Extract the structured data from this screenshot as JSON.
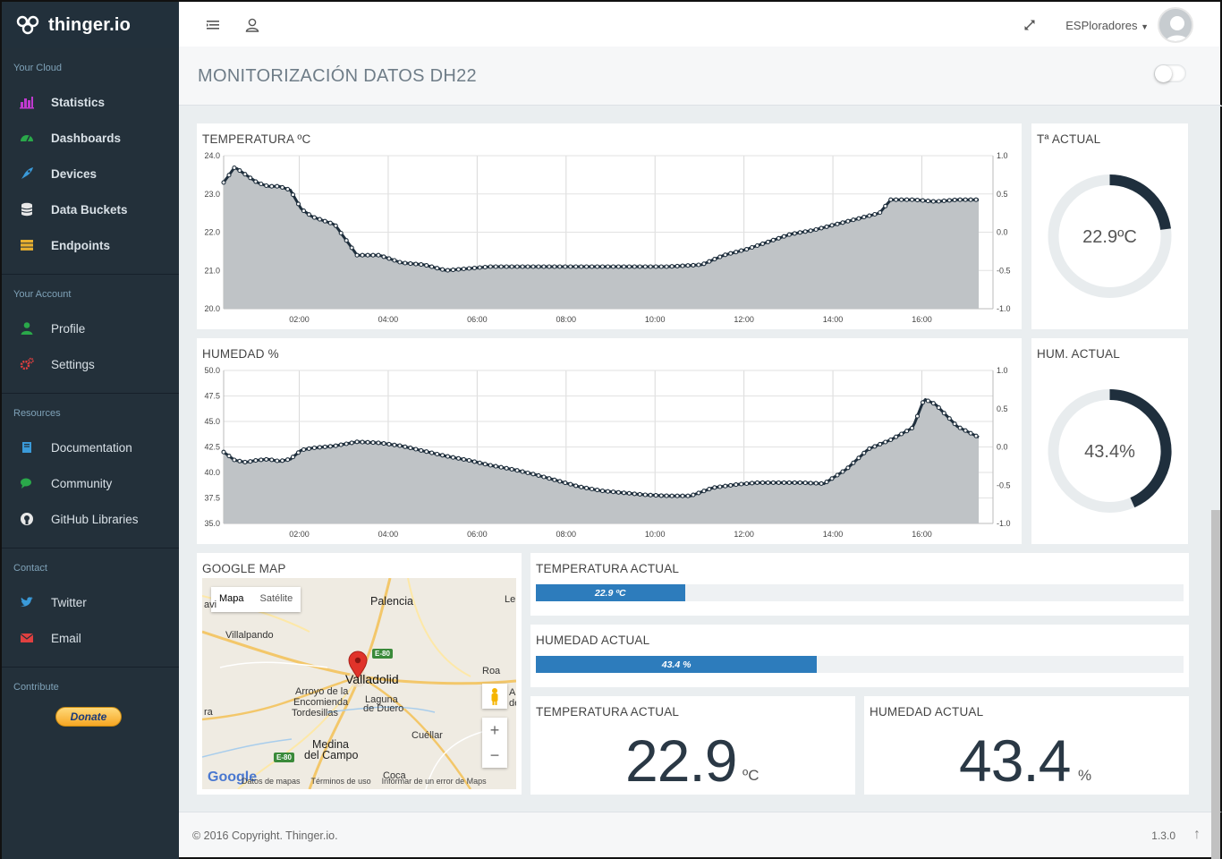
{
  "brand": {
    "name": "thinger.io"
  },
  "sidebar": {
    "sections": [
      {
        "title": "Your Cloud",
        "items": [
          {
            "label": "Statistics",
            "icon": "bar-chart-icon",
            "color": "#c03ad0",
            "bold": true
          },
          {
            "label": "Dashboards",
            "icon": "dashboard-icon",
            "color": "#2aa84a",
            "bold": true
          },
          {
            "label": "Devices",
            "icon": "rocket-icon",
            "color": "#3a9ad9",
            "bold": true
          },
          {
            "label": "Data Buckets",
            "icon": "database-icon",
            "color": "#e8e8e8",
            "bold": true
          },
          {
            "label": "Endpoints",
            "icon": "server-icon",
            "color": "#e8b030",
            "bold": true
          }
        ]
      },
      {
        "title": "Your Account",
        "items": [
          {
            "label": "Profile",
            "icon": "user-icon",
            "color": "#2aa84a",
            "bold": false
          },
          {
            "label": "Settings",
            "icon": "gears-icon",
            "color": "#e04040",
            "bold": false
          }
        ]
      },
      {
        "title": "Resources",
        "items": [
          {
            "label": "Documentation",
            "icon": "book-icon",
            "color": "#3a9ad9",
            "bold": false
          },
          {
            "label": "Community",
            "icon": "comments-icon",
            "color": "#2aa84a",
            "bold": false
          },
          {
            "label": "GitHub Libraries",
            "icon": "github-icon",
            "color": "#e8e8e8",
            "bold": false
          }
        ]
      },
      {
        "title": "Contact",
        "items": [
          {
            "label": "Twitter",
            "icon": "twitter-icon",
            "color": "#3a9ad9",
            "bold": false
          },
          {
            "label": "Email",
            "icon": "envelope-icon",
            "color": "#e04040",
            "bold": false
          }
        ]
      }
    ],
    "contribute_title": "Contribute",
    "donate_label": "Donate"
  },
  "topbar": {
    "user_name": "ESPloradores"
  },
  "dashboard": {
    "title": "MONITORIZACIÓN DATOS DH22"
  },
  "temp_chart": {
    "title": "TEMPERATURA ºC",
    "left_ticks": [
      "24.0",
      "23.0",
      "22.0",
      "21.0",
      "20.0"
    ],
    "right_ticks": [
      "1.0",
      "0.5",
      "0.0",
      "-0.5",
      "-1.0"
    ],
    "x_ticks": [
      "02:00",
      "04:00",
      "06:00",
      "08:00",
      "10:00",
      "12:00",
      "14:00",
      "16:00"
    ]
  },
  "hum_chart": {
    "title": "HUMEDAD %",
    "left_ticks": [
      "50.0",
      "47.5",
      "45.0",
      "42.5",
      "40.0",
      "37.5",
      "35.0"
    ],
    "right_ticks": [
      "1.0",
      "0.5",
      "0.0",
      "-0.5",
      "-1.0"
    ],
    "x_ticks": [
      "02:00",
      "04:00",
      "06:00",
      "08:00",
      "10:00",
      "12:00",
      "14:00",
      "16:00"
    ]
  },
  "chart_data": [
    {
      "type": "area",
      "title": "TEMPERATURA ºC",
      "x_unit": "hours",
      "x": [
        0.0,
        0.25,
        0.5,
        0.75,
        1.0,
        1.25,
        1.5,
        1.75,
        2.0,
        2.25,
        2.5,
        2.75,
        3.0,
        3.5,
        4.0,
        4.5,
        5.0,
        5.5,
        6.0,
        7.0,
        8.0,
        9.0,
        10.0,
        10.75,
        11.25,
        11.75,
        12.25,
        12.75,
        13.25,
        13.75,
        14.25,
        14.75,
        15.0,
        15.5,
        16.0,
        16.5,
        17.0
      ],
      "series": [
        {
          "values": [
            23.3,
            23.7,
            23.5,
            23.3,
            23.2,
            23.2,
            23.1,
            22.6,
            22.4,
            22.3,
            22.2,
            21.8,
            21.4,
            21.4,
            21.2,
            21.15,
            21.0,
            21.05,
            21.1,
            21.1,
            21.1,
            21.1,
            21.1,
            21.15,
            21.4,
            21.55,
            21.75,
            21.95,
            22.05,
            22.2,
            22.35,
            22.5,
            22.85,
            22.85,
            22.8,
            22.85,
            22.85
          ]
        }
      ],
      "ylim": [
        20.0,
        24.0
      ],
      "y2lim": [
        -1.0,
        1.0
      ],
      "grid": true
    },
    {
      "type": "area",
      "title": "HUMEDAD %",
      "x_unit": "hours",
      "x": [
        0.0,
        0.25,
        0.5,
        0.75,
        1.0,
        1.25,
        1.5,
        1.75,
        2.0,
        2.5,
        3.0,
        3.5,
        4.0,
        4.5,
        5.0,
        5.5,
        6.0,
        6.5,
        7.0,
        7.5,
        8.0,
        8.5,
        9.0,
        9.5,
        10.0,
        10.5,
        11.0,
        11.5,
        12.0,
        12.5,
        13.0,
        13.5,
        14.0,
        14.5,
        15.0,
        15.25,
        15.5,
        15.75,
        16.0,
        16.5,
        17.0
      ],
      "series": [
        {
          "values": [
            42.0,
            41.2,
            41.0,
            41.2,
            41.3,
            41.1,
            41.3,
            42.2,
            42.4,
            42.6,
            43.0,
            42.9,
            42.6,
            42.1,
            41.6,
            41.2,
            40.7,
            40.3,
            39.8,
            39.2,
            38.6,
            38.2,
            38.0,
            37.8,
            37.7,
            37.7,
            38.5,
            38.8,
            39.0,
            39.0,
            39.0,
            38.9,
            40.3,
            42.3,
            43.2,
            43.8,
            44.4,
            47.2,
            46.7,
            44.5,
            43.4
          ]
        }
      ],
      "ylim": [
        35.0,
        50.0
      ],
      "y2lim": [
        -1.0,
        1.0
      ],
      "grid": true
    }
  ],
  "gauges": [
    {
      "title": "Tª ACTUAL",
      "value": 22.9,
      "display": "22.9ºC",
      "fraction": 0.23
    },
    {
      "title": "HUM. ACTUAL",
      "value": 43.4,
      "display": "43.4%",
      "fraction": 0.434
    }
  ],
  "map": {
    "title": "GOOGLE MAP",
    "tab_map": "Mapa",
    "tab_satellite": "Satélite",
    "labels": {
      "palencia": "Palencia",
      "villalpando": "Villalpando",
      "valladolid": "Valladolid",
      "arroyo1": "Arroyo de la",
      "arroyo2": "Encomienda",
      "tordesillas": "Tordesillas",
      "laguna1": "Laguna",
      "laguna2": "de Duero",
      "roa": "Roa",
      "cuellar": "Cuéllar",
      "medina1": "Medina",
      "medina2": "del Campo",
      "coca": "Coca",
      "ler": "Ler",
      "ra": "ra",
      "de": "de",
      "a": "A",
      "avi": "avi"
    },
    "road_badges": {
      "e80a": "E-80",
      "e80b": "E-80"
    },
    "footer": {
      "data": "Datos de mapas",
      "terms": "Términos de uso",
      "report": "Informar de un error de Maps"
    },
    "zoom_in": "+",
    "zoom_out": "−",
    "logo": "Google"
  },
  "progress": [
    {
      "title": "TEMPERATURA ACTUAL",
      "label": "22.9 ºC",
      "fraction": 0.23
    },
    {
      "title": "HUMEDAD ACTUAL",
      "label": "43.4 %",
      "fraction": 0.434
    }
  ],
  "big_values": [
    {
      "title": "TEMPERATURA ACTUAL",
      "value": "22.9",
      "unit": "ºC"
    },
    {
      "title": "HUMEDAD ACTUAL",
      "value": "43.4",
      "unit": "%"
    }
  ],
  "footer": {
    "copyright": "© 2016 Copyright. Thinger.io.",
    "version": "1.3.0"
  },
  "colors": {
    "sidebar": "#23303a",
    "accent": "#2d7cbc",
    "gauge": "#1f2f3d",
    "series_fill": "#bfc3c6",
    "series_line": "#1f2f3d"
  }
}
